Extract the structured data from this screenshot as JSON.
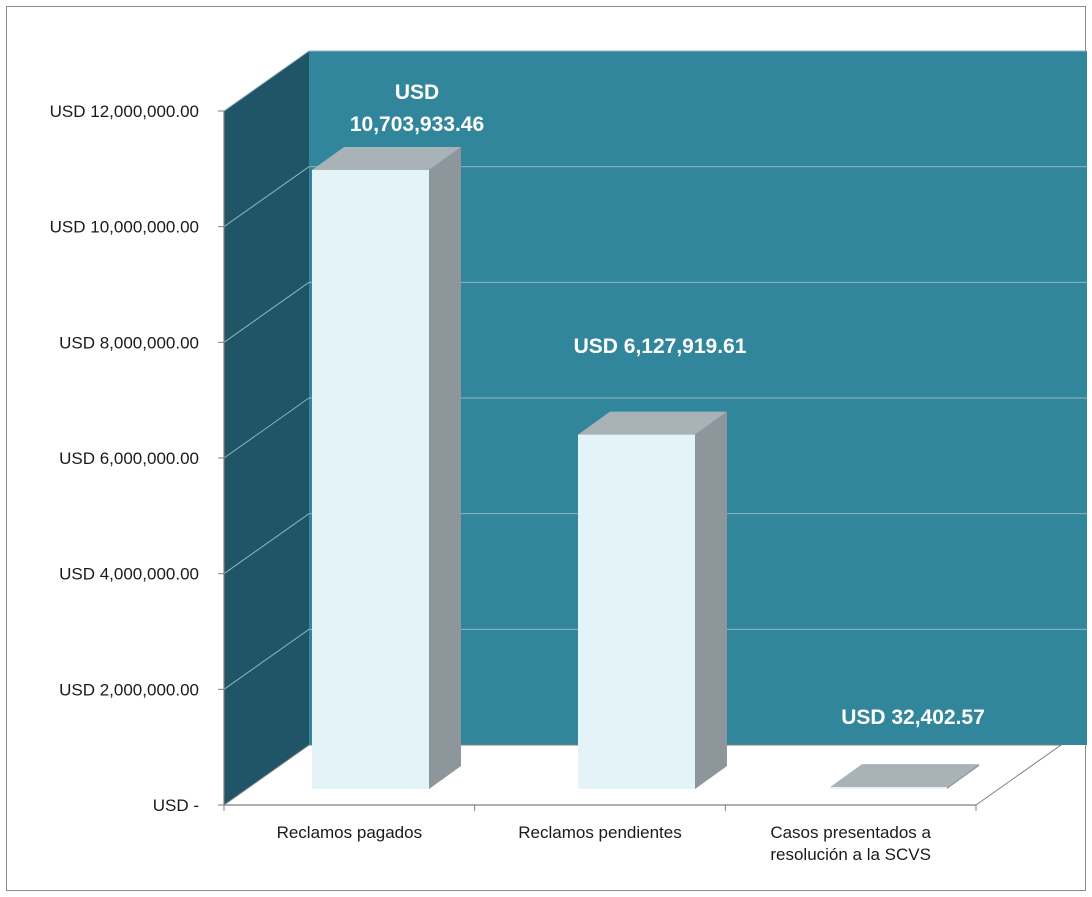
{
  "chart_data": {
    "type": "bar",
    "categories": [
      [
        "Reclamos pagados"
      ],
      [
        "Reclamos pendientes"
      ],
      [
        "Casos presentados a",
        "resolución a la SCVS"
      ]
    ],
    "values": [
      10703933.46,
      6127919.61,
      32402.57
    ],
    "data_labels": [
      [
        "USD",
        "10,703,933.46"
      ],
      [
        "USD 6,127,919.61"
      ],
      [
        "USD 32,402.57"
      ]
    ],
    "y_ticks": [
      {
        "value": 0,
        "label": "USD -"
      },
      {
        "value": 2000000,
        "label": "USD 2,000,000.00"
      },
      {
        "value": 4000000,
        "label": "USD 4,000,000.00"
      },
      {
        "value": 6000000,
        "label": "USD 6,000,000.00"
      },
      {
        "value": 8000000,
        "label": "USD 8,000,000.00"
      },
      {
        "value": 10000000,
        "label": "USD 10,000,000.00"
      },
      {
        "value": 12000000,
        "label": "USD 12,000,000.00"
      }
    ],
    "ylim": [
      0,
      12000000
    ],
    "grid": true,
    "three_d": true,
    "title": "",
    "xlabel": "",
    "ylabel": "",
    "colors": {
      "back_wall": "#32869b",
      "side_wall": "#1f5566",
      "floor": "#ffffff",
      "gridline": "#8fb4c0",
      "bar_front": "#e4f3f8",
      "bar_side": "#8c969b",
      "bar_top": "#a9b2b6",
      "label_text": "#ffffff",
      "axis_text": "#1a1a1a",
      "axis_line": "#7f7f7f"
    }
  }
}
